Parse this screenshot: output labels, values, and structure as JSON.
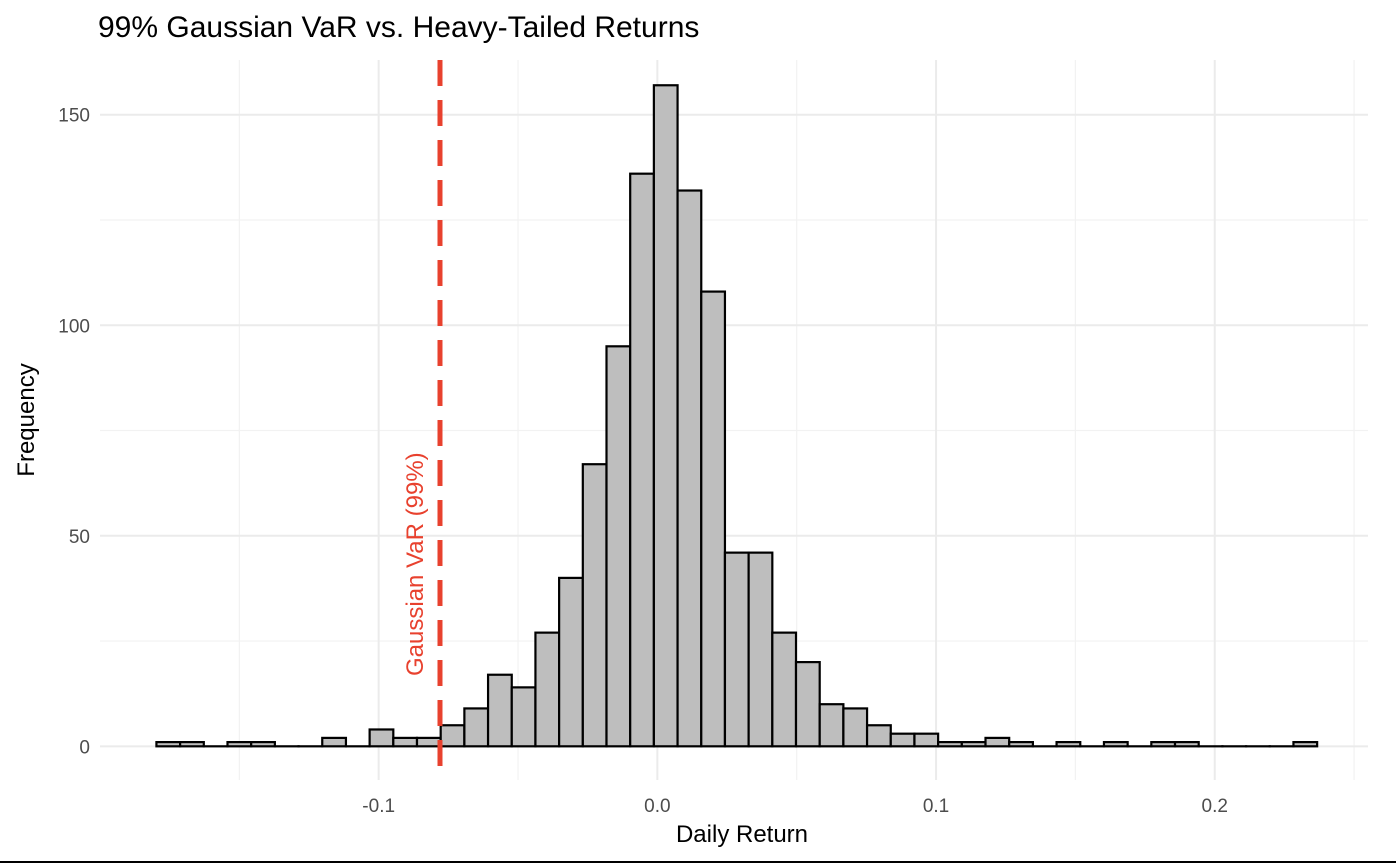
{
  "chart_data": {
    "type": "bar",
    "subtype": "histogram",
    "title": "99% Gaussian VaR vs. Heavy-Tailed Returns",
    "xlabel": "Daily Return",
    "ylabel": "Frequency",
    "xlim": [
      -0.2,
      0.255
    ],
    "ylim": [
      -8,
      163
    ],
    "x_ticks": [
      -0.1,
      0.0,
      0.1,
      0.2
    ],
    "x_tick_labels": [
      "-0.1",
      "0.0",
      "0.1",
      "0.2"
    ],
    "y_ticks": [
      0,
      50,
      100,
      150
    ],
    "y_tick_labels": [
      "0",
      "50",
      "100",
      "150"
    ],
    "bin_width": 0.0085,
    "bin_centers": [
      -0.1755,
      -0.167,
      -0.1585,
      -0.15,
      -0.1415,
      -0.133,
      -0.1245,
      -0.116,
      -0.1075,
      -0.099,
      -0.0905,
      -0.082,
      -0.0735,
      -0.065,
      -0.0565,
      -0.048,
      -0.0395,
      -0.031,
      -0.0225,
      -0.014,
      -0.0055,
      0.003,
      0.0115,
      0.02,
      0.0285,
      0.037,
      0.0455,
      0.054,
      0.0625,
      0.071,
      0.0795,
      0.088,
      0.0965,
      0.105,
      0.1135,
      0.122,
      0.1305,
      0.139,
      0.1475,
      0.156,
      0.1645,
      0.173,
      0.1815,
      0.19,
      0.1985,
      0.207,
      0.2155,
      0.224,
      0.2325
    ],
    "values": [
      1,
      1,
      0,
      1,
      1,
      0,
      0,
      2,
      0,
      4,
      2,
      2,
      5,
      9,
      17,
      14,
      27,
      40,
      67,
      95,
      136,
      157,
      132,
      108,
      46,
      46,
      27,
      20,
      10,
      9,
      5,
      3,
      3,
      1,
      1,
      2,
      1,
      0,
      1,
      0,
      1,
      0,
      1,
      1,
      0,
      0,
      0,
      0,
      1
    ],
    "vline": {
      "x": -0.078,
      "label": "Gaussian VaR (99%)",
      "color": "#e8412e",
      "style": "dashed"
    },
    "bar_fill": "#bebebe",
    "bar_stroke": "#000000",
    "grid": true,
    "legend": "none"
  }
}
